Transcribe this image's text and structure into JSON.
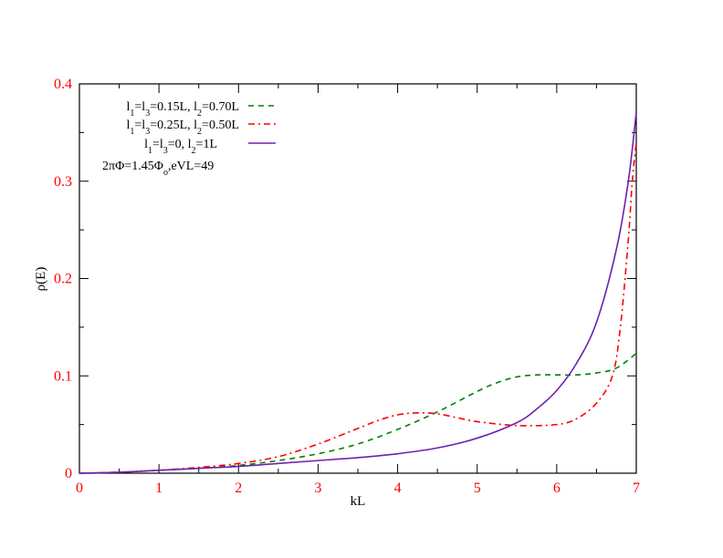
{
  "chart_data": {
    "type": "line",
    "title": "",
    "xlabel": "kL",
    "ylabel": "ρ(E)",
    "xlim": [
      0,
      7
    ],
    "ylim": [
      0,
      0.4
    ],
    "x_ticks": [
      "0",
      "1",
      "2",
      "3",
      "4",
      "5",
      "6",
      "7"
    ],
    "y_ticks": [
      "0",
      "0.1",
      "0.2",
      "0.3",
      "0.4"
    ],
    "tick_label_color": "#ff0000",
    "grid": false,
    "legend_position": "top-left",
    "annotation": {
      "text_prefix": "2πΦ=1.45Φ",
      "text_sub": "o",
      "text_suffix": ",eVL=49"
    },
    "series": [
      {
        "legend": {
          "a": "l",
          "a_sub": "1",
          "b": "=l",
          "b_sub": "3",
          "c": "=0.15L, l",
          "c_sub": "2",
          "d": "=0.70L"
        },
        "color": "#008000",
        "dash": "dashed",
        "x": [
          0,
          0.5,
          1,
          1.5,
          2,
          2.5,
          3,
          3.5,
          4,
          4.5,
          5,
          5.25,
          5.5,
          5.75,
          6,
          6.25,
          6.5,
          6.75,
          7
        ],
        "y": [
          0,
          0.001,
          0.003,
          0.005,
          0.008,
          0.013,
          0.02,
          0.03,
          0.045,
          0.063,
          0.084,
          0.093,
          0.099,
          0.101,
          0.101,
          0.101,
          0.103,
          0.108,
          0.123
        ]
      },
      {
        "legend": {
          "a": "l",
          "a_sub": "1",
          "b": "=l",
          "b_sub": "3",
          "c": "=0.25L, l",
          "c_sub": "2",
          "d": "=0.50L"
        },
        "color": "#ff0000",
        "dash": "dashdot",
        "x": [
          0,
          0.5,
          1,
          1.5,
          2,
          2.5,
          3,
          3.5,
          3.75,
          4,
          4.25,
          4.5,
          4.75,
          5,
          5.5,
          6,
          6.25,
          6.5,
          6.7,
          6.8,
          6.9,
          6.95,
          7
        ],
        "y": [
          0,
          0.001,
          0.003,
          0.006,
          0.01,
          0.017,
          0.03,
          0.046,
          0.054,
          0.06,
          0.062,
          0.061,
          0.057,
          0.053,
          0.049,
          0.05,
          0.056,
          0.072,
          0.1,
          0.15,
          0.24,
          0.3,
          0.34
        ]
      },
      {
        "legend": {
          "a": "l",
          "a_sub": "1",
          "b": "=l",
          "b_sub": "3",
          "c": "=0, l",
          "c_sub": "2",
          "d": "=1L"
        },
        "color": "#7020b0",
        "dash": "solid",
        "x": [
          0,
          0.5,
          1,
          1.5,
          2,
          2.5,
          3,
          3.5,
          4,
          4.5,
          5,
          5.5,
          5.75,
          6,
          6.25,
          6.5,
          6.75,
          6.9,
          7
        ],
        "y": [
          0,
          0.001,
          0.003,
          0.005,
          0.007,
          0.01,
          0.013,
          0.016,
          0.02,
          0.026,
          0.036,
          0.052,
          0.066,
          0.085,
          0.113,
          0.155,
          0.23,
          0.3,
          0.371
        ]
      }
    ]
  }
}
